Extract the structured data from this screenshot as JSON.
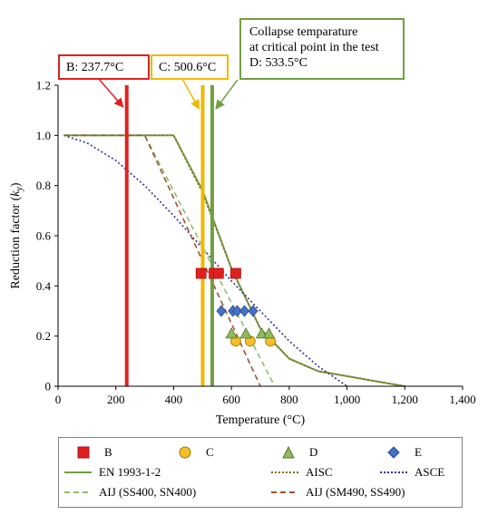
{
  "chart_data": {
    "type": "line",
    "xlabel": "Temperature (°C)",
    "ylabel": "Reduction factor (ky)",
    "xlim": [
      0,
      1400
    ],
    "ylim": [
      0,
      1.2
    ],
    "xticks": [
      0,
      200,
      400,
      600,
      800,
      1000,
      1200,
      1400
    ],
    "xtick_labels": [
      "0",
      "200",
      "400",
      "600",
      "800",
      "1,000",
      "1,200",
      "1,400"
    ],
    "yticks": [
      0,
      0.2,
      0.4,
      0.6,
      0.8,
      1.0,
      1.2
    ],
    "ytick_labels": [
      "0",
      "0.2",
      "0.4",
      "0.6",
      "0.8",
      "1.0",
      "1.2"
    ],
    "grid": false,
    "legend_position": "bottom",
    "lines": [
      {
        "name": "EN 1993-1-2",
        "color": "#70a040",
        "style": "solid",
        "x": [
          20,
          400,
          500,
          600,
          700,
          800,
          900,
          1000,
          1100,
          1200
        ],
        "y": [
          1.0,
          1.0,
          0.78,
          0.47,
          0.23,
          0.11,
          0.06,
          0.04,
          0.02,
          0.0
        ]
      },
      {
        "name": "AISC",
        "color": "#8c6a2c",
        "style": "dotted",
        "x": [
          20,
          400,
          500,
          600,
          700,
          800,
          900,
          1000,
          1100,
          1200
        ],
        "y": [
          1.0,
          1.0,
          0.77,
          0.47,
          0.23,
          0.11,
          0.06,
          0.04,
          0.02,
          0.0
        ]
      },
      {
        "name": "ASCE",
        "color": "#2e3192",
        "style": "dotted",
        "x": [
          20,
          100,
          200,
          300,
          400,
          500,
          600,
          700,
          800,
          900,
          1000
        ],
        "y": [
          1.0,
          0.97,
          0.9,
          0.8,
          0.68,
          0.55,
          0.42,
          0.3,
          0.18,
          0.08,
          0.0
        ]
      },
      {
        "name": "AIJ (SS400, SN400)",
        "color": "#8dc06a",
        "style": "dashed",
        "x": [
          20,
          300,
          750
        ],
        "y": [
          1.0,
          1.0,
          0.0
        ]
      },
      {
        "name": "AIJ (SM490, SS490)",
        "color": "#a0522d",
        "style": "dashed",
        "x": [
          20,
          300,
          700
        ],
        "y": [
          1.0,
          1.0,
          0.0
        ]
      }
    ],
    "vlines": [
      {
        "x": 237.7,
        "color": "#e02020"
      },
      {
        "x": 500.6,
        "color": "#f0b800"
      },
      {
        "x": 533.5,
        "color": "#70a040"
      }
    ],
    "scatter": [
      {
        "name": "B",
        "marker": "square",
        "color": "#e02020",
        "stroke": "#b01010",
        "x": [
          495,
          540,
          555,
          615
        ],
        "y": [
          0.45,
          0.45,
          0.45,
          0.45
        ]
      },
      {
        "name": "C",
        "marker": "circle",
        "color": "#f5c02a",
        "stroke": "#a07800",
        "x": [
          615,
          665,
          735
        ],
        "y": [
          0.18,
          0.18,
          0.18
        ]
      },
      {
        "name": "D",
        "marker": "triangle",
        "color": "#8dbb5e",
        "stroke": "#4f7a2a",
        "x": [
          600,
          650,
          705,
          730
        ],
        "y": [
          0.21,
          0.21,
          0.21,
          0.21
        ]
      },
      {
        "name": "E",
        "marker": "diamond",
        "color": "#4472c4",
        "stroke": "#2a4a8a",
        "x": [
          565,
          605,
          620,
          645,
          675
        ],
        "y": [
          0.3,
          0.3,
          0.3,
          0.3,
          0.3
        ]
      }
    ],
    "annotations": {
      "b_label": "B: 237.7°C",
      "c_label": "C: 500.6°C",
      "d_line1": "Collapse temparature",
      "d_line2": "at critical point in the test",
      "d_line3": "D: 533.5°C"
    }
  },
  "legend": {
    "b": "B",
    "c": "C",
    "d": "D",
    "e": "E",
    "en": "EN 1993-1-2",
    "aisc": "AISC",
    "asce": "ASCE",
    "aij1": "AIJ (SS400, SN400)",
    "aij2": "AIJ (SM490, SS490)"
  }
}
